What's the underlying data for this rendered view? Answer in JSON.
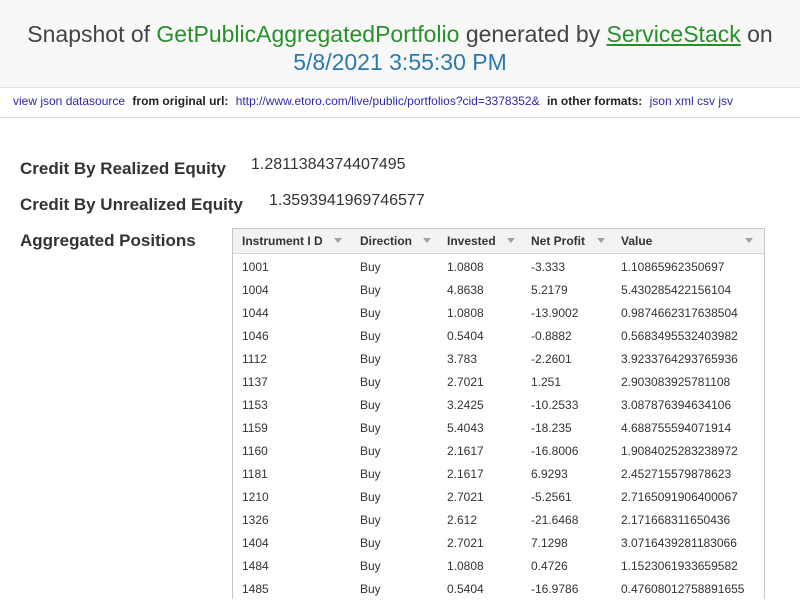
{
  "header": {
    "prefix": "Snapshot of",
    "operation": "GetPublicAggregatedPortfolio",
    "generated_by": "generated by",
    "service": "ServiceStack",
    "on": "on",
    "date": "5/8/2021 3:55:30 PM"
  },
  "subbar": {
    "view_json": "view json datasource",
    "from_label": "from original url:",
    "url": "http://www.etoro.com/live/public/portfolios?cid=3378352&",
    "other_label": "in other formats:",
    "formats": [
      "json",
      "xml",
      "csv",
      "jsv"
    ]
  },
  "fields": {
    "credit_realized_label": "Credit By Realized Equity",
    "credit_realized_value": "1.2811384374407495",
    "credit_unrealized_label": "Credit By Unrealized Equity",
    "credit_unrealized_value": "1.3593941969746577",
    "aggregated_label": "Aggregated Positions"
  },
  "table": {
    "columns": [
      "Instrument I D",
      "Direction",
      "Invested",
      "Net Profit",
      "Value"
    ],
    "rows": [
      [
        "1001",
        "Buy",
        "1.0808",
        "-3.333",
        "1.10865962350697"
      ],
      [
        "1004",
        "Buy",
        "4.8638",
        "5.2179",
        "5.430285422156104"
      ],
      [
        "1044",
        "Buy",
        "1.0808",
        "-13.9002",
        "0.9874662317638504"
      ],
      [
        "1046",
        "Buy",
        "0.5404",
        "-0.8882",
        "0.5683495532403982"
      ],
      [
        "1112",
        "Buy",
        "3.783",
        "-2.2601",
        "3.9233764293765936"
      ],
      [
        "1137",
        "Buy",
        "2.7021",
        "1.251",
        "2.903083925781108"
      ],
      [
        "1153",
        "Buy",
        "3.2425",
        "-10.2533",
        "3.087876394634106"
      ],
      [
        "1159",
        "Buy",
        "5.4043",
        "-18.235",
        "4.688755594071914"
      ],
      [
        "1160",
        "Buy",
        "2.1617",
        "-16.8006",
        "1.9084025283238972"
      ],
      [
        "1181",
        "Buy",
        "2.1617",
        "6.9293",
        "2.452715579878623"
      ],
      [
        "1210",
        "Buy",
        "2.7021",
        "-5.2561",
        "2.7165091906400067"
      ],
      [
        "1326",
        "Buy",
        "2.612",
        "-21.6468",
        "2.171668311650436"
      ],
      [
        "1404",
        "Buy",
        "2.7021",
        "7.1298",
        "3.0716439281183066"
      ],
      [
        "1484",
        "Buy",
        "1.0808",
        "0.4726",
        "1.1523061933659582"
      ],
      [
        "1485",
        "Buy",
        "0.5404",
        "-16.9786",
        "0.47608012758891655"
      ]
    ]
  }
}
